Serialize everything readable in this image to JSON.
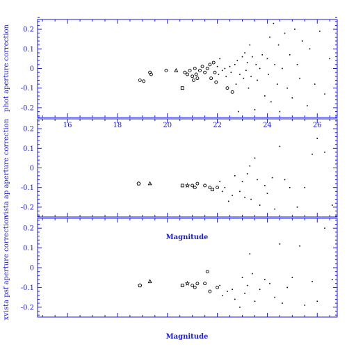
{
  "colors": {
    "axis": "#1a1adc",
    "marks": "#000000",
    "background": "#ffffff"
  },
  "chart_data": [
    {
      "type": "scatter",
      "panel": "top",
      "ylabel": "phot aperture correction",
      "xlabel": "",
      "xlim": [
        14.8,
        26.8
      ],
      "ylim": [
        -0.25,
        0.25
      ],
      "xticks": [
        16,
        18,
        20,
        22,
        24,
        26
      ],
      "yticks": [
        -0.2,
        -0.1,
        0,
        0.1,
        0.2
      ],
      "xtick_labels": [
        "16",
        "18",
        "20",
        "22",
        "24",
        "26"
      ],
      "ytick_labels": [
        "-0.2",
        "-0.1",
        "0",
        "0.1",
        "0.2"
      ],
      "show_xtick_labels": true,
      "points": [
        {
          "x": 18.9,
          "y": -0.06,
          "m": "o"
        },
        {
          "x": 19.05,
          "y": -0.065,
          "m": "o"
        },
        {
          "x": 19.3,
          "y": -0.02,
          "m": "o"
        },
        {
          "x": 19.35,
          "y": -0.03,
          "m": "o"
        },
        {
          "x": 19.95,
          "y": -0.01,
          "m": "o"
        },
        {
          "x": 20.35,
          "y": -0.01,
          "m": "^"
        },
        {
          "x": 20.6,
          "y": -0.1,
          "m": "s"
        },
        {
          "x": 20.7,
          "y": -0.02,
          "m": "o"
        },
        {
          "x": 20.8,
          "y": -0.03,
          "m": "o"
        },
        {
          "x": 20.9,
          "y": -0.01,
          "m": "o"
        },
        {
          "x": 21.0,
          "y": -0.04,
          "m": "o"
        },
        {
          "x": 21.05,
          "y": -0.06,
          "m": "o"
        },
        {
          "x": 21.1,
          "y": 0.0,
          "m": "o"
        },
        {
          "x": 21.15,
          "y": -0.03,
          "m": "o"
        },
        {
          "x": 21.2,
          "y": -0.05,
          "m": "o"
        },
        {
          "x": 21.3,
          "y": -0.01,
          "m": "o"
        },
        {
          "x": 21.4,
          "y": 0.01,
          "m": "o"
        },
        {
          "x": 21.5,
          "y": -0.02,
          "m": "o"
        },
        {
          "x": 21.6,
          "y": 0.0,
          "m": "o"
        },
        {
          "x": 21.7,
          "y": 0.02,
          "m": "o"
        },
        {
          "x": 21.75,
          "y": -0.05,
          "m": "o"
        },
        {
          "x": 21.85,
          "y": 0.03,
          "m": "o"
        },
        {
          "x": 21.9,
          "y": -0.02,
          "m": "o"
        },
        {
          "x": 21.95,
          "y": -0.07,
          "m": "o"
        },
        {
          "x": 22.0,
          "y": 0.01,
          "m": "."
        },
        {
          "x": 22.05,
          "y": -0.03,
          "m": "."
        },
        {
          "x": 22.1,
          "y": 0.05,
          "m": "."
        },
        {
          "x": 22.2,
          "y": -0.01,
          "m": "."
        },
        {
          "x": 22.3,
          "y": 0.0,
          "m": "."
        },
        {
          "x": 22.35,
          "y": -0.04,
          "m": "."
        },
        {
          "x": 22.4,
          "y": -0.1,
          "m": "o"
        },
        {
          "x": 22.5,
          "y": 0.01,
          "m": "."
        },
        {
          "x": 22.55,
          "y": -0.02,
          "m": "."
        },
        {
          "x": 22.6,
          "y": -0.12,
          "m": "o"
        },
        {
          "x": 22.7,
          "y": 0.02,
          "m": "."
        },
        {
          "x": 22.75,
          "y": -0.08,
          "m": "."
        },
        {
          "x": 22.8,
          "y": 0.04,
          "m": "."
        },
        {
          "x": 22.85,
          "y": -0.22,
          "m": "."
        },
        {
          "x": 22.9,
          "y": -0.03,
          "m": "."
        },
        {
          "x": 23.0,
          "y": 0.06,
          "m": "."
        },
        {
          "x": 23.05,
          "y": -0.05,
          "m": "."
        },
        {
          "x": 23.1,
          "y": 0.08,
          "m": "."
        },
        {
          "x": 23.15,
          "y": -0.01,
          "m": "."
        },
        {
          "x": 23.2,
          "y": 0.03,
          "m": "."
        },
        {
          "x": 23.25,
          "y": -0.1,
          "m": "."
        },
        {
          "x": 23.3,
          "y": 0.12,
          "m": "."
        },
        {
          "x": 23.35,
          "y": -0.04,
          "m": "."
        },
        {
          "x": 23.4,
          "y": 0.06,
          "m": "."
        },
        {
          "x": 23.5,
          "y": -0.21,
          "m": "."
        },
        {
          "x": 23.55,
          "y": 0.02,
          "m": "."
        },
        {
          "x": 23.6,
          "y": -0.06,
          "m": "."
        },
        {
          "x": 23.7,
          "y": 0.0,
          "m": "."
        },
        {
          "x": 23.8,
          "y": 0.07,
          "m": "."
        },
        {
          "x": 23.9,
          "y": -0.14,
          "m": "."
        },
        {
          "x": 24.0,
          "y": 0.05,
          "m": "."
        },
        {
          "x": 24.05,
          "y": -0.03,
          "m": "."
        },
        {
          "x": 24.1,
          "y": 0.16,
          "m": "."
        },
        {
          "x": 24.15,
          "y": -0.17,
          "m": "."
        },
        {
          "x": 24.25,
          "y": 0.23,
          "m": "."
        },
        {
          "x": 24.3,
          "y": 0.02,
          "m": "."
        },
        {
          "x": 24.4,
          "y": -0.08,
          "m": "."
        },
        {
          "x": 24.45,
          "y": 0.12,
          "m": "."
        },
        {
          "x": 24.5,
          "y": -0.22,
          "m": "."
        },
        {
          "x": 24.6,
          "y": 0.0,
          "m": "."
        },
        {
          "x": 24.7,
          "y": 0.18,
          "m": "."
        },
        {
          "x": 24.8,
          "y": -0.1,
          "m": "."
        },
        {
          "x": 24.9,
          "y": 0.07,
          "m": "."
        },
        {
          "x": 25.0,
          "y": -0.15,
          "m": "."
        },
        {
          "x": 25.1,
          "y": 0.2,
          "m": "."
        },
        {
          "x": 25.2,
          "y": 0.02,
          "m": "."
        },
        {
          "x": 25.3,
          "y": -0.05,
          "m": "."
        },
        {
          "x": 25.4,
          "y": 0.14,
          "m": "."
        },
        {
          "x": 25.6,
          "y": -0.19,
          "m": "."
        },
        {
          "x": 25.7,
          "y": 0.1,
          "m": "."
        },
        {
          "x": 25.9,
          "y": -0.08,
          "m": "."
        },
        {
          "x": 26.1,
          "y": 0.19,
          "m": "."
        },
        {
          "x": 26.3,
          "y": -0.13,
          "m": "."
        },
        {
          "x": 26.5,
          "y": 0.05,
          "m": "."
        }
      ]
    },
    {
      "type": "scatter",
      "panel": "middle",
      "ylabel": "vista ap aperture correction",
      "xlabel": "Magnitude",
      "xlim": [
        14.8,
        26.8
      ],
      "ylim": [
        -0.25,
        0.25
      ],
      "xticks": [
        16,
        18,
        20,
        22,
        24,
        26
      ],
      "yticks": [
        -0.2,
        -0.1,
        0,
        0.1,
        0.2
      ],
      "xtick_labels": [],
      "ytick_labels": [
        "-0.2",
        "-0.1",
        "0",
        "0.1",
        "0.2"
      ],
      "show_xtick_labels": false,
      "points": [
        {
          "x": 18.85,
          "y": -0.08,
          "m": "p"
        },
        {
          "x": 19.3,
          "y": -0.08,
          "m": "^"
        },
        {
          "x": 20.6,
          "y": -0.09,
          "m": "s"
        },
        {
          "x": 20.8,
          "y": -0.09,
          "m": "*"
        },
        {
          "x": 21.0,
          "y": -0.09,
          "m": "o"
        },
        {
          "x": 21.1,
          "y": -0.1,
          "m": "o"
        },
        {
          "x": 21.2,
          "y": -0.08,
          "m": "o"
        },
        {
          "x": 21.5,
          "y": -0.09,
          "m": "o"
        },
        {
          "x": 21.7,
          "y": -0.1,
          "m": "o"
        },
        {
          "x": 21.8,
          "y": -0.11,
          "m": "s"
        },
        {
          "x": 22.0,
          "y": -0.1,
          "m": "o"
        },
        {
          "x": 22.1,
          "y": -0.07,
          "m": "."
        },
        {
          "x": 22.2,
          "y": -0.12,
          "m": "."
        },
        {
          "x": 22.3,
          "y": -0.1,
          "m": "."
        },
        {
          "x": 22.45,
          "y": -0.17,
          "m": "."
        },
        {
          "x": 22.6,
          "y": -0.14,
          "m": "."
        },
        {
          "x": 22.7,
          "y": -0.04,
          "m": "."
        },
        {
          "x": 22.9,
          "y": -0.12,
          "m": "."
        },
        {
          "x": 23.0,
          "y": -0.07,
          "m": "."
        },
        {
          "x": 23.1,
          "y": -0.15,
          "m": "."
        },
        {
          "x": 23.2,
          "y": -0.03,
          "m": "."
        },
        {
          "x": 23.3,
          "y": 0.01,
          "m": "."
        },
        {
          "x": 23.35,
          "y": -0.16,
          "m": "."
        },
        {
          "x": 23.5,
          "y": 0.05,
          "m": "."
        },
        {
          "x": 23.6,
          "y": -0.06,
          "m": "."
        },
        {
          "x": 23.7,
          "y": -0.19,
          "m": "."
        },
        {
          "x": 23.9,
          "y": -0.09,
          "m": "."
        },
        {
          "x": 24.0,
          "y": -0.13,
          "m": "."
        },
        {
          "x": 24.2,
          "y": -0.05,
          "m": "."
        },
        {
          "x": 24.3,
          "y": -0.21,
          "m": "."
        },
        {
          "x": 24.5,
          "y": 0.11,
          "m": "."
        },
        {
          "x": 24.7,
          "y": -0.06,
          "m": "."
        },
        {
          "x": 24.9,
          "y": -0.1,
          "m": "."
        },
        {
          "x": 25.2,
          "y": -0.2,
          "m": "."
        },
        {
          "x": 25.5,
          "y": -0.1,
          "m": "."
        },
        {
          "x": 25.8,
          "y": 0.07,
          "m": "."
        },
        {
          "x": 26.0,
          "y": 0.15,
          "m": "."
        },
        {
          "x": 26.3,
          "y": 0.08,
          "m": "."
        },
        {
          "x": 26.6,
          "y": -0.19,
          "m": "."
        }
      ]
    },
    {
      "type": "scatter",
      "panel": "bottom",
      "ylabel": "xvista psf aperture correction",
      "xlabel": "Magnitude",
      "xlim": [
        14.8,
        26.8
      ],
      "ylim": [
        -0.25,
        0.25
      ],
      "xticks": [
        16,
        18,
        20,
        22,
        24,
        26
      ],
      "yticks": [
        -0.2,
        -0.1,
        0,
        0.1,
        0.2
      ],
      "xtick_labels": [],
      "ytick_labels": [
        "-0.2",
        "-0.1",
        "0",
        "0.1",
        "0.2"
      ],
      "show_xtick_labels": false,
      "points": [
        {
          "x": 18.9,
          "y": -0.09,
          "m": "p"
        },
        {
          "x": 19.3,
          "y": -0.07,
          "m": "^"
        },
        {
          "x": 20.6,
          "y": -0.09,
          "m": "s"
        },
        {
          "x": 20.8,
          "y": -0.08,
          "m": "*"
        },
        {
          "x": 21.0,
          "y": -0.09,
          "m": "o"
        },
        {
          "x": 21.1,
          "y": -0.1,
          "m": "o"
        },
        {
          "x": 21.2,
          "y": -0.08,
          "m": "o"
        },
        {
          "x": 21.5,
          "y": -0.08,
          "m": "o"
        },
        {
          "x": 21.6,
          "y": -0.02,
          "m": "o"
        },
        {
          "x": 21.7,
          "y": -0.12,
          "m": "o"
        },
        {
          "x": 22.0,
          "y": -0.1,
          "m": "o"
        },
        {
          "x": 22.1,
          "y": -0.09,
          "m": "."
        },
        {
          "x": 22.2,
          "y": -0.14,
          "m": "."
        },
        {
          "x": 22.4,
          "y": -0.12,
          "m": "."
        },
        {
          "x": 22.6,
          "y": -0.11,
          "m": "."
        },
        {
          "x": 22.7,
          "y": -0.16,
          "m": "."
        },
        {
          "x": 22.9,
          "y": -0.2,
          "m": "."
        },
        {
          "x": 23.0,
          "y": -0.05,
          "m": "."
        },
        {
          "x": 23.1,
          "y": -0.13,
          "m": "."
        },
        {
          "x": 23.2,
          "y": -0.09,
          "m": "."
        },
        {
          "x": 23.3,
          "y": 0.07,
          "m": "."
        },
        {
          "x": 23.4,
          "y": -0.03,
          "m": "."
        },
        {
          "x": 23.5,
          "y": -0.17,
          "m": "."
        },
        {
          "x": 23.7,
          "y": -0.11,
          "m": "."
        },
        {
          "x": 23.9,
          "y": -0.06,
          "m": "."
        },
        {
          "x": 24.1,
          "y": -0.08,
          "m": "."
        },
        {
          "x": 24.3,
          "y": -0.15,
          "m": "."
        },
        {
          "x": 24.5,
          "y": 0.12,
          "m": "."
        },
        {
          "x": 24.6,
          "y": -0.18,
          "m": "."
        },
        {
          "x": 24.8,
          "y": -0.1,
          "m": "."
        },
        {
          "x": 25.0,
          "y": -0.05,
          "m": "."
        },
        {
          "x": 25.3,
          "y": 0.11,
          "m": "."
        },
        {
          "x": 25.5,
          "y": -0.19,
          "m": "."
        },
        {
          "x": 25.8,
          "y": -0.07,
          "m": "."
        },
        {
          "x": 26.0,
          "y": -0.17,
          "m": "."
        },
        {
          "x": 26.3,
          "y": 0.2,
          "m": "."
        },
        {
          "x": 26.6,
          "y": -0.06,
          "m": "."
        }
      ]
    }
  ]
}
